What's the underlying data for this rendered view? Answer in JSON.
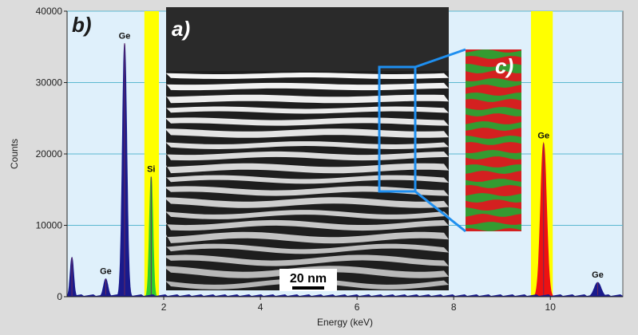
{
  "figure": {
    "panel_labels": {
      "a": "a)",
      "b": "b)",
      "c": "c)"
    },
    "scale_bar": "20 nm",
    "colors": {
      "plot_bg": "#dff0fb",
      "highlight_band": "#ffff00",
      "spectrum_fill": "#1a1a8c",
      "si_fill": "#2ecc2e",
      "ge_fill": "#ee1111",
      "box_color": "#1e8ff0",
      "map_red": "#d42020",
      "map_green": "#22a833"
    }
  },
  "chart_data": {
    "type": "area",
    "title": "",
    "xlabel": "Energy (keV)",
    "ylabel": "Counts",
    "xlim": [
      0,
      11.5
    ],
    "ylim": [
      0,
      40000
    ],
    "xticks": [
      2,
      4,
      6,
      8,
      10
    ],
    "yticks": [
      0,
      10000,
      20000,
      30000,
      40000
    ],
    "grid": "horizontal",
    "highlight_bands": [
      [
        1.6,
        1.9
      ],
      [
        9.6,
        10.05
      ]
    ],
    "peaks": [
      {
        "label": "",
        "x": 0.1,
        "y": 5500,
        "sigma": 0.035,
        "color": "spectrum_fill"
      },
      {
        "label": "Ge",
        "x": 0.8,
        "y": 2500,
        "sigma": 0.045,
        "color": "spectrum_fill"
      },
      {
        "label": "Ge",
        "x": 1.19,
        "y": 35500,
        "sigma": 0.045,
        "color": "spectrum_fill"
      },
      {
        "label": "Si",
        "x": 1.74,
        "y": 16800,
        "sigma": 0.035,
        "color": "si_fill"
      },
      {
        "label": "Ge",
        "x": 9.86,
        "y": 21500,
        "sigma": 0.06,
        "color": "ge_fill"
      },
      {
        "label": "Ge",
        "x": 10.98,
        "y": 2000,
        "sigma": 0.07,
        "color": "spectrum_fill"
      }
    ]
  }
}
